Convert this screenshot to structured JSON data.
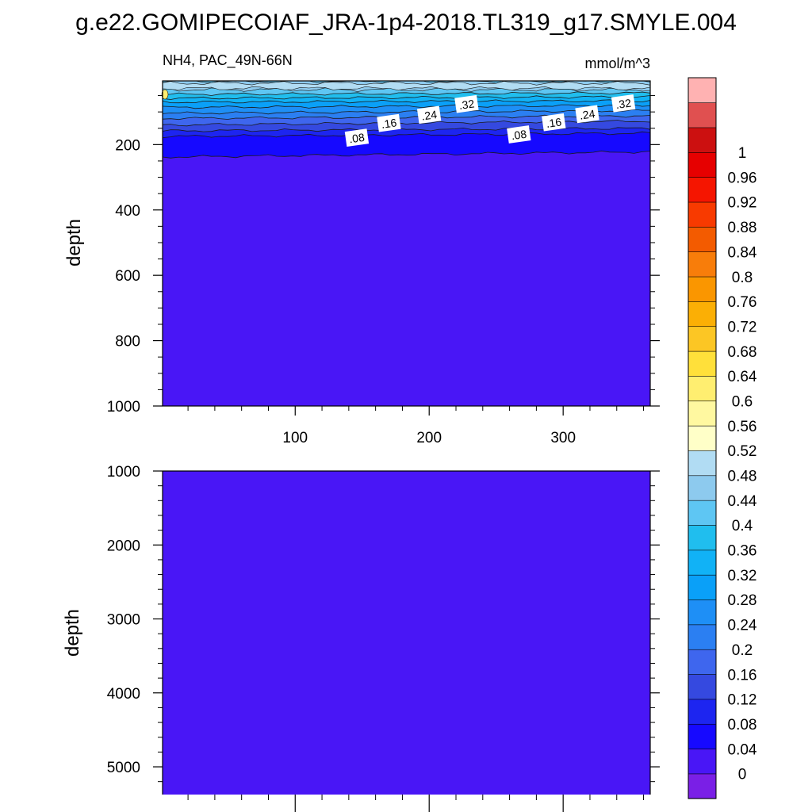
{
  "title": "g.e22.GOMIPECOIAF_JRA-1p4-2018.TL319_g17.SMYLE.004",
  "colors": {
    "background_fill": "#4916f6",
    "contour_line": "#1a1a1a",
    "colorbar": [
      "#7a1fe6",
      "#4916f6",
      "#1609ff",
      "#1d25f0",
      "#3549e0",
      "#3e66ee",
      "#2b7ff2",
      "#1e8ff6",
      "#0aa0f8",
      "#11b2f6",
      "#20beee",
      "#5ec6f3",
      "#8dcaee",
      "#b1dcf3",
      "#ffffc8",
      "#fff8a0",
      "#ffee70",
      "#ffe03a",
      "#fcc624",
      "#fbaf05",
      "#fa9600",
      "#f87d0a",
      "#f35b00",
      "#f83a00",
      "#f51500",
      "#e60000",
      "#cc1010",
      "#e05050",
      "#ffb2b2"
    ]
  },
  "chart_data": [
    {
      "type": "heatmap",
      "panel": "upper",
      "title_left": "NH4, PAC_49N-66N",
      "title_right": "mmol/m^3",
      "xlabel": "",
      "ylabel": "depth",
      "xlim": [
        1,
        365
      ],
      "ylim": [
        1000,
        5
      ],
      "y_reversed": true,
      "xticks": [
        100,
        200,
        300
      ],
      "yticks": [
        200,
        400,
        600,
        800,
        1000
      ],
      "contour_labels": [
        {
          "text": ".08",
          "x": 146,
          "y": 180
        },
        {
          "text": ".16",
          "x": 170,
          "y": 135
        },
        {
          "text": ".24",
          "x": 200,
          "y": 110
        },
        {
          "text": ".32",
          "x": 228,
          "y": 77
        },
        {
          "text": ".08",
          "x": 267,
          "y": 170
        },
        {
          "text": ".16",
          "x": 293,
          "y": 133
        },
        {
          "text": ".24",
          "x": 318,
          "y": 108
        },
        {
          "text": ".32",
          "x": 345,
          "y": 75
        }
      ],
      "contour_levels": [
        {
          "level": 0.04,
          "depth_x0": 238,
          "depth_x1": 222
        },
        {
          "level": 0.08,
          "depth_x0": 175,
          "depth_x1": 165
        },
        {
          "level": 0.12,
          "depth_x0": 158,
          "depth_x1": 150
        },
        {
          "level": 0.16,
          "depth_x0": 140,
          "depth_x1": 128
        },
        {
          "level": 0.2,
          "depth_x0": 120,
          "depth_x1": 112
        },
        {
          "level": 0.24,
          "depth_x0": 104,
          "depth_x1": 96
        },
        {
          "level": 0.28,
          "depth_x0": 86,
          "depth_x1": 80
        },
        {
          "level": 0.32,
          "depth_x0": 70,
          "depth_x1": 66
        },
        {
          "level": 0.36,
          "depth_x0": 58,
          "depth_x1": 54
        },
        {
          "level": 0.4,
          "depth_x0": 46,
          "depth_x1": 42
        }
      ],
      "surface_band": [
        {
          "level": 0.44,
          "top": 32,
          "bottom": 6
        },
        {
          "level": 0.48,
          "top": 28,
          "bottom": 12
        }
      ]
    },
    {
      "type": "heatmap",
      "panel": "lower",
      "xlabel": "",
      "ylabel": "depth",
      "xlim": [
        1,
        365
      ],
      "ylim": [
        1000,
        5375
      ],
      "y_reversed": true,
      "yticks": [
        1000,
        2000,
        3000,
        4000,
        5000
      ],
      "fill_value": 0.02
    }
  ],
  "colorbar": {
    "labels": [
      "1",
      "0.96",
      "0.92",
      "0.88",
      "0.84",
      "0.8",
      "0.76",
      "0.72",
      "0.68",
      "0.64",
      "0.6",
      "0.56",
      "0.52",
      "0.48",
      "0.44",
      "0.4",
      "0.36",
      "0.32",
      "0.28",
      "0.24",
      "0.2",
      "0.16",
      "0.12",
      "0.08",
      "0.04",
      "0"
    ],
    "levels": [
      0,
      0.04,
      0.08,
      0.12,
      0.16,
      0.2,
      0.24,
      0.28,
      0.32,
      0.36,
      0.4,
      0.44,
      0.48,
      0.52,
      0.56,
      0.6,
      0.64,
      0.68,
      0.72,
      0.76,
      0.8,
      0.84,
      0.88,
      0.92,
      0.96,
      1
    ]
  }
}
